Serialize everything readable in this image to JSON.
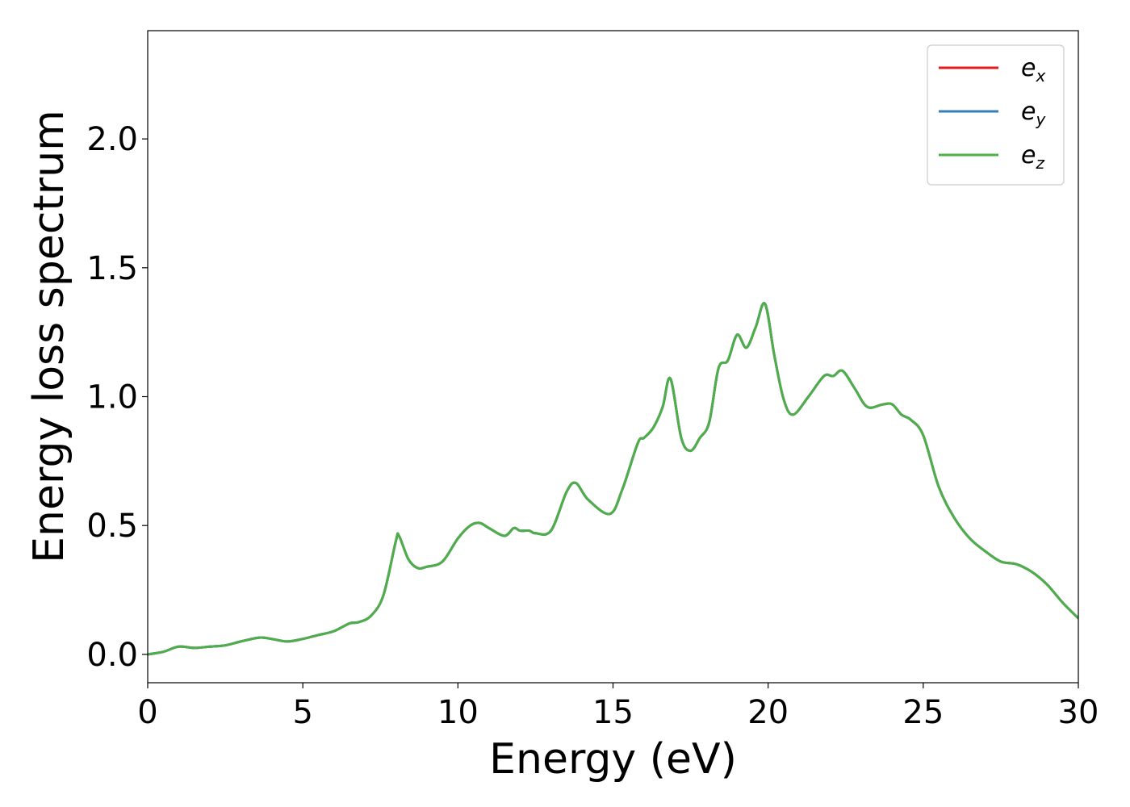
{
  "chart_data": {
    "type": "line",
    "title": "",
    "xlabel": "Energy (eV)",
    "ylabel": "Energy loss spectrum",
    "xlim": [
      0,
      30
    ],
    "ylim": [
      -0.11,
      2.42
    ],
    "xticks": [
      0,
      5,
      10,
      15,
      20,
      25,
      30
    ],
    "yticks": [
      0.0,
      0.5,
      1.0,
      1.5,
      2.0
    ],
    "xtick_labels": [
      "0",
      "5",
      "10",
      "15",
      "20",
      "25",
      "30"
    ],
    "ytick_labels": [
      "0.0",
      "0.5",
      "1.0",
      "1.5",
      "2.0"
    ],
    "grid": false,
    "legend_position": "top-right",
    "legend": [
      {
        "base": "e",
        "sub": "x",
        "color": "#e41a1c"
      },
      {
        "base": "e",
        "sub": "y",
        "color": "#377eb8"
      },
      {
        "base": "e",
        "sub": "z",
        "color": "#4daf4a"
      }
    ],
    "x": [
      0,
      0.5,
      1.0,
      1.5,
      2.0,
      2.5,
      3.0,
      3.6,
      4.0,
      4.5,
      5.0,
      5.5,
      6.0,
      6.5,
      6.8,
      7.2,
      7.6,
      8.0,
      8.1,
      8.4,
      8.7,
      9.0,
      9.5,
      10.0,
      10.4,
      10.7,
      11.0,
      11.5,
      11.8,
      12.0,
      12.3,
      12.5,
      13.0,
      13.5,
      13.8,
      14.2,
      14.9,
      15.3,
      15.8,
      16.0,
      16.3,
      16.6,
      16.85,
      17.2,
      17.5,
      17.8,
      18.1,
      18.4,
      18.7,
      19.0,
      19.3,
      19.6,
      19.9,
      20.2,
      20.5,
      20.8,
      21.3,
      21.8,
      22.1,
      22.4,
      22.8,
      23.2,
      23.7,
      24.0,
      24.3,
      24.6,
      25.0,
      25.5,
      26.0,
      26.5,
      27.0,
      27.5,
      28.0,
      28.5,
      29.0,
      29.5,
      30.0
    ],
    "series": [
      {
        "values": [
          0.0,
          0.01,
          0.03,
          0.025,
          0.03,
          0.035,
          0.05,
          0.065,
          0.06,
          0.05,
          0.06,
          0.075,
          0.09,
          0.12,
          0.125,
          0.15,
          0.23,
          0.44,
          0.46,
          0.37,
          0.335,
          0.34,
          0.36,
          0.45,
          0.5,
          0.51,
          0.49,
          0.46,
          0.49,
          0.48,
          0.48,
          0.47,
          0.48,
          0.63,
          0.665,
          0.6,
          0.545,
          0.64,
          0.82,
          0.84,
          0.88,
          0.96,
          1.07,
          0.84,
          0.79,
          0.84,
          0.9,
          1.11,
          1.14,
          1.24,
          1.19,
          1.27,
          1.36,
          1.16,
          0.99,
          0.93,
          1.0,
          1.08,
          1.08,
          1.1,
          1.03,
          0.96,
          0.97,
          0.97,
          0.93,
          0.91,
          0.85,
          0.65,
          0.53,
          0.45,
          0.4,
          0.36,
          0.35,
          0.32,
          0.27,
          0.2,
          0.14
        ]
      },
      {
        "values": [
          0.0,
          0.01,
          0.03,
          0.025,
          0.03,
          0.035,
          0.05,
          0.065,
          0.06,
          0.05,
          0.06,
          0.075,
          0.09,
          0.12,
          0.125,
          0.15,
          0.23,
          0.44,
          0.46,
          0.37,
          0.335,
          0.34,
          0.36,
          0.45,
          0.5,
          0.51,
          0.49,
          0.46,
          0.49,
          0.48,
          0.48,
          0.47,
          0.48,
          0.63,
          0.665,
          0.6,
          0.545,
          0.64,
          0.82,
          0.84,
          0.88,
          0.96,
          1.07,
          0.84,
          0.79,
          0.84,
          0.9,
          1.11,
          1.14,
          1.24,
          1.19,
          1.27,
          1.36,
          1.16,
          0.99,
          0.93,
          1.0,
          1.08,
          1.08,
          1.1,
          1.03,
          0.96,
          0.97,
          0.97,
          0.93,
          0.91,
          0.85,
          0.65,
          0.53,
          0.45,
          0.4,
          0.36,
          0.35,
          0.32,
          0.27,
          0.2,
          0.14
        ]
      },
      {
        "values": [
          0.0,
          0.01,
          0.03,
          0.025,
          0.03,
          0.035,
          0.05,
          0.065,
          0.06,
          0.05,
          0.06,
          0.075,
          0.09,
          0.12,
          0.125,
          0.15,
          0.23,
          0.44,
          0.46,
          0.37,
          0.335,
          0.34,
          0.36,
          0.45,
          0.5,
          0.51,
          0.49,
          0.46,
          0.49,
          0.48,
          0.48,
          0.47,
          0.48,
          0.63,
          0.665,
          0.6,
          0.545,
          0.64,
          0.82,
          0.84,
          0.88,
          0.96,
          1.07,
          0.84,
          0.79,
          0.84,
          0.9,
          1.11,
          1.14,
          1.24,
          1.19,
          1.27,
          1.36,
          1.16,
          0.99,
          0.93,
          1.0,
          1.08,
          1.08,
          1.1,
          1.03,
          0.96,
          0.97,
          0.97,
          0.93,
          0.91,
          0.85,
          0.65,
          0.53,
          0.45,
          0.4,
          0.36,
          0.35,
          0.32,
          0.27,
          0.2,
          0.14
        ]
      }
    ]
  }
}
